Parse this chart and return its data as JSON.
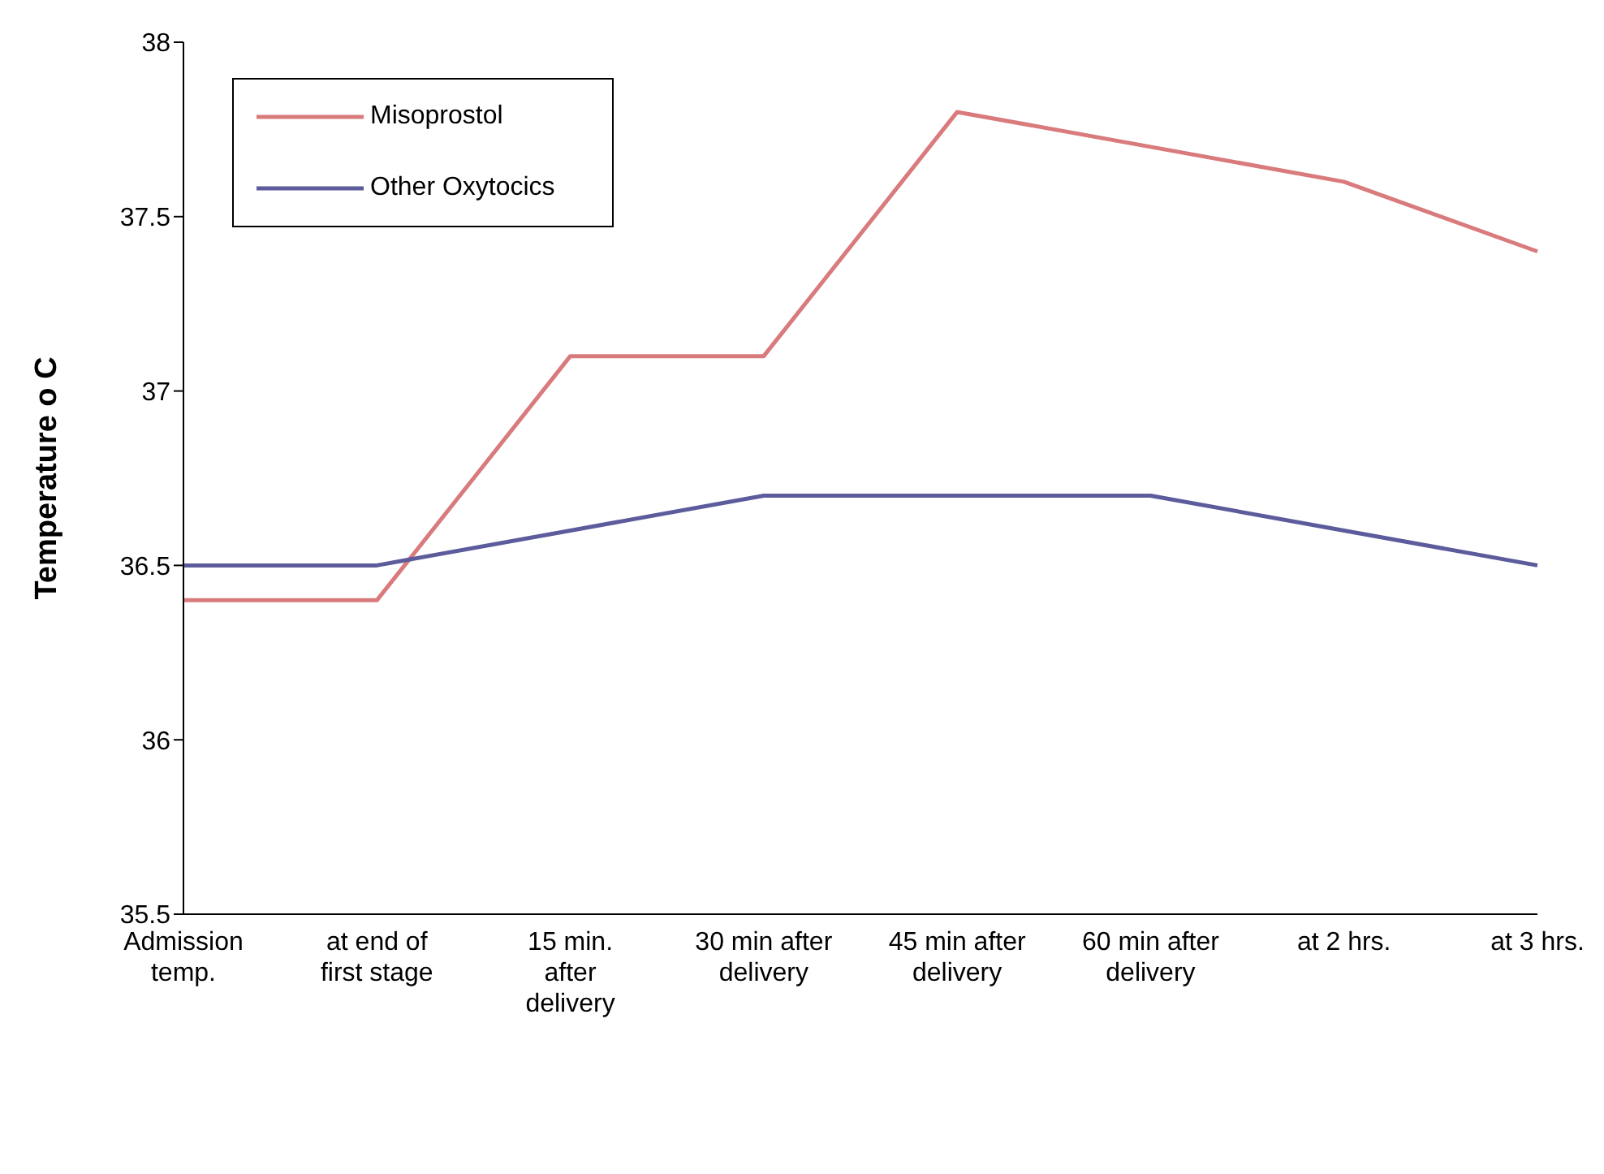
{
  "chart_data": {
    "type": "line",
    "ylabel": "Temperature o C",
    "categories": [
      "Admission temp.",
      "at end of first stage",
      "15 min. after delivery",
      "30 min after delivery",
      "45 min after delivery",
      "60 min after delivery",
      "at 2 hrs.",
      "at 3 hrs."
    ],
    "series": [
      {
        "name": "Misoprostol",
        "color": "#d97b7d",
        "values": [
          36.4,
          36.4,
          37.1,
          37.1,
          37.8,
          37.7,
          37.6,
          37.4
        ]
      },
      {
        "name": "Other Oxytocics",
        "color": "#5c5c9c",
        "values": [
          36.5,
          36.5,
          36.6,
          36.7,
          36.7,
          36.7,
          36.6,
          36.5
        ]
      }
    ],
    "ylim": [
      35.5,
      38
    ],
    "yticks": [
      35.5,
      36,
      36.5,
      37,
      37.5,
      38
    ],
    "grid": false,
    "legend": "top left",
    "marker": "none",
    "line_style": "solid"
  }
}
